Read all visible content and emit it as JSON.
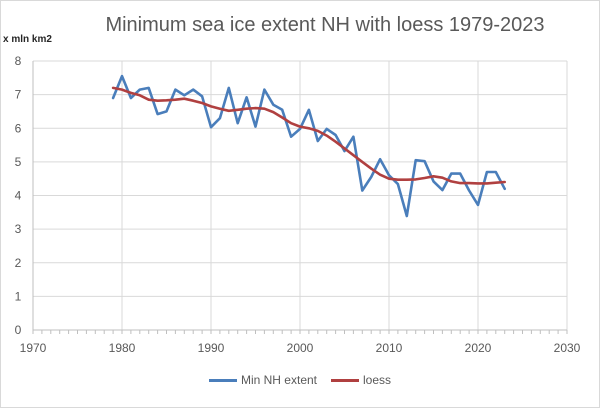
{
  "chart_data": {
    "type": "line",
    "title": "Minimum sea ice extent NH with loess  1979-2023",
    "ylabel": "x mln km2",
    "xlabel": "",
    "xlim": [
      1970,
      2030
    ],
    "ylim": [
      0,
      8
    ],
    "xticks": [
      "1970",
      "1980",
      "1990",
      "2000",
      "2010",
      "2020",
      "2030"
    ],
    "yticks": [
      "0",
      "1",
      "2",
      "3",
      "4",
      "5",
      "6",
      "7",
      "8"
    ],
    "grid": true,
    "legend_position": "bottom",
    "x": [
      1979,
      1980,
      1981,
      1982,
      1983,
      1984,
      1985,
      1986,
      1987,
      1988,
      1989,
      1990,
      1991,
      1992,
      1993,
      1994,
      1995,
      1996,
      1997,
      1998,
      1999,
      2000,
      2001,
      2002,
      2003,
      2004,
      2005,
      2006,
      2007,
      2008,
      2009,
      2010,
      2011,
      2012,
      2013,
      2014,
      2015,
      2016,
      2017,
      2018,
      2019,
      2020,
      2021,
      2022,
      2023
    ],
    "series": [
      {
        "name": "Min NH extent",
        "color": "#4a7ebb",
        "values": [
          6.9,
          7.55,
          6.9,
          7.15,
          7.2,
          6.42,
          6.5,
          7.15,
          6.98,
          7.15,
          6.95,
          6.03,
          6.3,
          7.2,
          6.15,
          6.92,
          6.05,
          7.15,
          6.7,
          6.55,
          5.75,
          5.98,
          6.55,
          5.62,
          5.98,
          5.8,
          5.32,
          5.75,
          4.15,
          4.55,
          5.08,
          4.6,
          4.34,
          3.39,
          5.05,
          5.02,
          4.42,
          4.16,
          4.65,
          4.65,
          4.15,
          3.72,
          4.7,
          4.7,
          4.2
        ]
      },
      {
        "name": "loess",
        "color": "#b04040",
        "values": [
          7.2,
          7.15,
          7.05,
          6.98,
          6.85,
          6.82,
          6.83,
          6.85,
          6.88,
          6.82,
          6.75,
          6.65,
          6.58,
          6.52,
          6.55,
          6.58,
          6.6,
          6.58,
          6.48,
          6.32,
          6.15,
          6.05,
          6.0,
          5.92,
          5.78,
          5.6,
          5.4,
          5.2,
          5.0,
          4.8,
          4.62,
          4.5,
          4.47,
          4.47,
          4.48,
          4.52,
          4.57,
          4.53,
          4.42,
          4.37,
          4.37,
          4.36,
          4.36,
          4.38,
          4.4
        ]
      }
    ]
  }
}
